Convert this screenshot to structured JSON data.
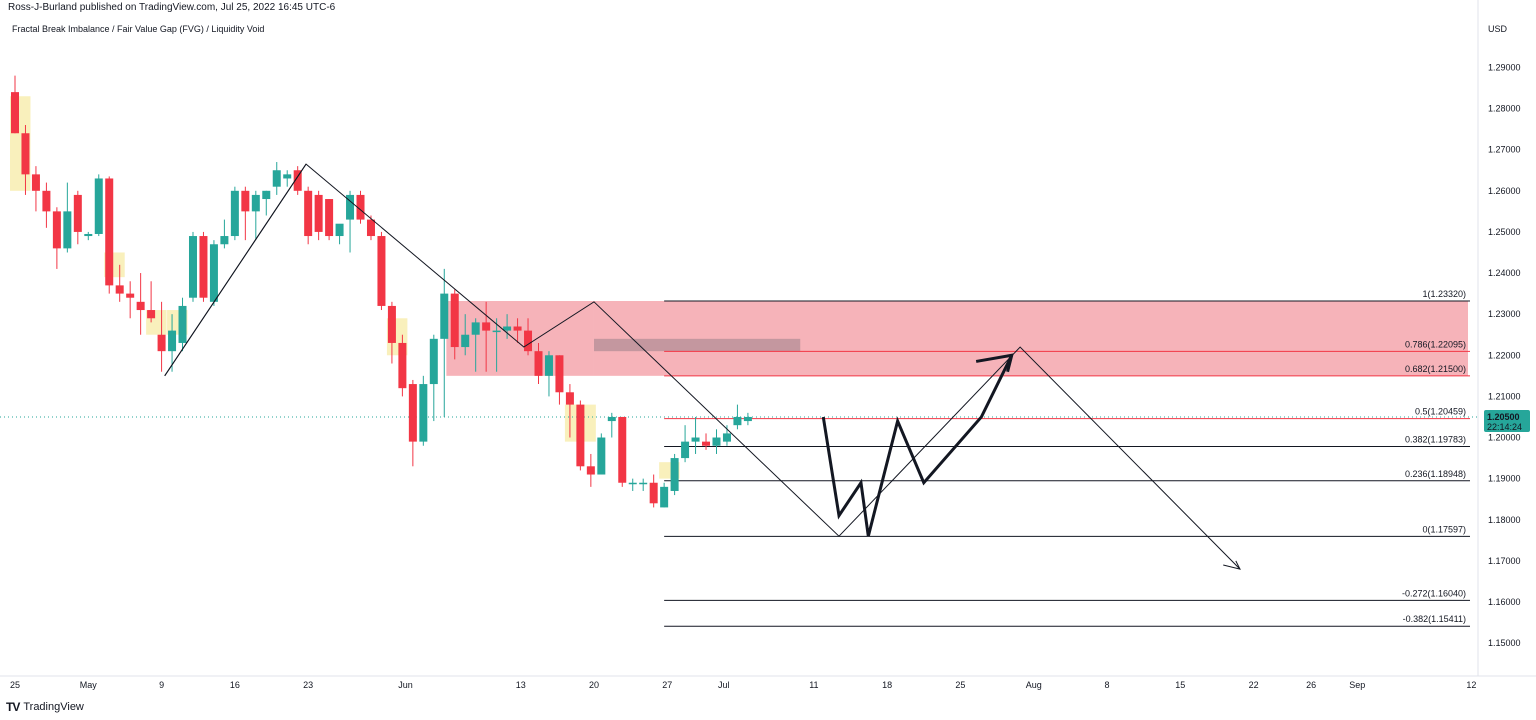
{
  "header": {
    "publisher": "Ross-J-Burland published on TradingView.com, Jul 25, 2022 16:45 UTC-6"
  },
  "footer": {
    "brand": "TradingView",
    "logo": "TV"
  },
  "colors": {
    "up": "#26a69a",
    "down": "#f23645",
    "fvg": "#f7eaa0",
    "zone": "#f4a0a8",
    "zone_dark": "#b89098",
    "price_line": "#f23645",
    "badge": "#26a69a"
  },
  "chart_data": {
    "type": "candlestick",
    "title": "Fractal Break Imbalance / Fair Value Gap (FVG) / Liquidity Void",
    "currency_label": "USD",
    "y_ticks": [
      "1.29000",
      "1.28000",
      "1.27000",
      "1.26000",
      "1.25000",
      "1.24000",
      "1.23000",
      "1.22000",
      "1.21000",
      "1.20000",
      "1.19000",
      "1.18000",
      "1.17000",
      "1.16000",
      "1.15000"
    ],
    "ylim": [
      1.142,
      1.303
    ],
    "x_ticks": [
      "25",
      "May",
      "9",
      "16",
      "23",
      "Jun",
      "13",
      "20",
      "27",
      "Jul",
      "11",
      "18",
      "25",
      "Aug",
      "8",
      "15",
      "22",
      "26",
      "Sep",
      "12"
    ],
    "candles": [
      {
        "o": 1.284,
        "h": 1.288,
        "l": 1.274,
        "c": 1.274
      },
      {
        "o": 1.274,
        "h": 1.276,
        "l": 1.259,
        "c": 1.264
      },
      {
        "o": 1.264,
        "h": 1.266,
        "l": 1.255,
        "c": 1.26
      },
      {
        "o": 1.26,
        "h": 1.262,
        "l": 1.251,
        "c": 1.255
      },
      {
        "o": 1.255,
        "h": 1.256,
        "l": 1.241,
        "c": 1.246
      },
      {
        "o": 1.246,
        "h": 1.262,
        "l": 1.245,
        "c": 1.255
      },
      {
        "o": 1.259,
        "h": 1.26,
        "l": 1.247,
        "c": 1.25
      },
      {
        "o": 1.249,
        "h": 1.25,
        "l": 1.248,
        "c": 1.2495
      },
      {
        "o": 1.2495,
        "h": 1.264,
        "l": 1.249,
        "c": 1.263
      },
      {
        "o": 1.263,
        "h": 1.2635,
        "l": 1.235,
        "c": 1.237
      },
      {
        "o": 1.237,
        "h": 1.242,
        "l": 1.233,
        "c": 1.235
      },
      {
        "o": 1.235,
        "h": 1.238,
        "l": 1.229,
        "c": 1.234
      },
      {
        "o": 1.233,
        "h": 1.24,
        "l": 1.225,
        "c": 1.231
      },
      {
        "o": 1.231,
        "h": 1.238,
        "l": 1.228,
        "c": 1.229
      },
      {
        "o": 1.225,
        "h": 1.233,
        "l": 1.216,
        "c": 1.221
      },
      {
        "o": 1.221,
        "h": 1.23,
        "l": 1.216,
        "c": 1.226
      },
      {
        "o": 1.223,
        "h": 1.234,
        "l": 1.221,
        "c": 1.232
      },
      {
        "o": 1.234,
        "h": 1.25,
        "l": 1.233,
        "c": 1.249
      },
      {
        "o": 1.249,
        "h": 1.25,
        "l": 1.233,
        "c": 1.234
      },
      {
        "o": 1.233,
        "h": 1.248,
        "l": 1.232,
        "c": 1.247
      },
      {
        "o": 1.247,
        "h": 1.253,
        "l": 1.246,
        "c": 1.249
      },
      {
        "o": 1.249,
        "h": 1.261,
        "l": 1.248,
        "c": 1.26
      },
      {
        "o": 1.26,
        "h": 1.261,
        "l": 1.248,
        "c": 1.255
      },
      {
        "o": 1.255,
        "h": 1.26,
        "l": 1.248,
        "c": 1.259
      },
      {
        "o": 1.258,
        "h": 1.26,
        "l": 1.254,
        "c": 1.26
      },
      {
        "o": 1.261,
        "h": 1.267,
        "l": 1.259,
        "c": 1.265
      },
      {
        "o": 1.263,
        "h": 1.265,
        "l": 1.261,
        "c": 1.264
      },
      {
        "o": 1.265,
        "h": 1.266,
        "l": 1.259,
        "c": 1.26
      },
      {
        "o": 1.26,
        "h": 1.261,
        "l": 1.247,
        "c": 1.249
      },
      {
        "o": 1.259,
        "h": 1.26,
        "l": 1.248,
        "c": 1.25
      },
      {
        "o": 1.258,
        "h": 1.258,
        "l": 1.248,
        "c": 1.249
      },
      {
        "o": 1.249,
        "h": 1.251,
        "l": 1.247,
        "c": 1.252
      },
      {
        "o": 1.253,
        "h": 1.26,
        "l": 1.245,
        "c": 1.259
      },
      {
        "o": 1.259,
        "h": 1.26,
        "l": 1.252,
        "c": 1.253
      },
      {
        "o": 1.253,
        "h": 1.254,
        "l": 1.248,
        "c": 1.249
      },
      {
        "o": 1.249,
        "h": 1.25,
        "l": 1.231,
        "c": 1.232
      },
      {
        "o": 1.232,
        "h": 1.233,
        "l": 1.218,
        "c": 1.223
      },
      {
        "o": 1.223,
        "h": 1.225,
        "l": 1.21,
        "c": 1.212
      },
      {
        "o": 1.213,
        "h": 1.214,
        "l": 1.193,
        "c": 1.199
      },
      {
        "o": 1.199,
        "h": 1.215,
        "l": 1.198,
        "c": 1.213
      },
      {
        "o": 1.213,
        "h": 1.225,
        "l": 1.204,
        "c": 1.224
      },
      {
        "o": 1.224,
        "h": 1.241,
        "l": 1.205,
        "c": 1.235
      },
      {
        "o": 1.235,
        "h": 1.236,
        "l": 1.219,
        "c": 1.222
      },
      {
        "o": 1.222,
        "h": 1.23,
        "l": 1.22,
        "c": 1.225
      },
      {
        "o": 1.225,
        "h": 1.229,
        "l": 1.216,
        "c": 1.228
      },
      {
        "o": 1.228,
        "h": 1.233,
        "l": 1.216,
        "c": 1.226
      },
      {
        "o": 1.226,
        "h": 1.229,
        "l": 1.216,
        "c": 1.226
      },
      {
        "o": 1.226,
        "h": 1.23,
        "l": 1.224,
        "c": 1.227
      },
      {
        "o": 1.227,
        "h": 1.229,
        "l": 1.223,
        "c": 1.226
      },
      {
        "o": 1.226,
        "h": 1.229,
        "l": 1.22,
        "c": 1.221
      },
      {
        "o": 1.221,
        "h": 1.223,
        "l": 1.213,
        "c": 1.215
      },
      {
        "o": 1.215,
        "h": 1.221,
        "l": 1.21,
        "c": 1.22
      },
      {
        "o": 1.22,
        "h": 1.22,
        "l": 1.208,
        "c": 1.211
      },
      {
        "o": 1.211,
        "h": 1.213,
        "l": 1.2,
        "c": 1.208
      },
      {
        "o": 1.208,
        "h": 1.209,
        "l": 1.192,
        "c": 1.193
      },
      {
        "o": 1.193,
        "h": 1.196,
        "l": 1.188,
        "c": 1.191
      },
      {
        "o": 1.191,
        "h": 1.201,
        "l": 1.191,
        "c": 1.2
      },
      {
        "o": 1.204,
        "h": 1.206,
        "l": 1.2,
        "c": 1.205
      },
      {
        "o": 1.205,
        "h": 1.205,
        "l": 1.188,
        "c": 1.189
      },
      {
        "o": 1.1888,
        "h": 1.19,
        "l": 1.187,
        "c": 1.189
      },
      {
        "o": 1.1888,
        "h": 1.19,
        "l": 1.187,
        "c": 1.189
      },
      {
        "o": 1.189,
        "h": 1.191,
        "l": 1.183,
        "c": 1.184
      },
      {
        "o": 1.183,
        "h": 1.189,
        "l": 1.183,
        "c": 1.188
      },
      {
        "o": 1.187,
        "h": 1.196,
        "l": 1.186,
        "c": 1.195
      },
      {
        "o": 1.195,
        "h": 1.203,
        "l": 1.194,
        "c": 1.199
      },
      {
        "o": 1.199,
        "h": 1.205,
        "l": 1.196,
        "c": 1.2
      },
      {
        "o": 1.199,
        "h": 1.201,
        "l": 1.197,
        "c": 1.198
      },
      {
        "o": 1.198,
        "h": 1.202,
        "l": 1.196,
        "c": 1.2
      },
      {
        "o": 1.199,
        "h": 1.203,
        "l": 1.198,
        "c": 1.201
      },
      {
        "o": 1.203,
        "h": 1.208,
        "l": 1.202,
        "c": 1.205
      },
      {
        "o": 1.204,
        "h": 1.206,
        "l": 1.203,
        "c": 1.205
      }
    ],
    "fvg_boxes": [
      {
        "i0": 0,
        "i1": 1,
        "y0": 1.26,
        "y1": 1.283
      },
      {
        "i0": 9,
        "i1": 10,
        "y0": 1.239,
        "y1": 1.245
      },
      {
        "i0": 13,
        "i1": 14,
        "y0": 1.225,
        "y1": 1.231
      },
      {
        "i0": 15,
        "i1": 16,
        "y0": 1.225,
        "y1": 1.231
      },
      {
        "i0": 36,
        "i1": 37,
        "y0": 1.22,
        "y1": 1.229
      },
      {
        "i0": 53,
        "i1": 55,
        "y0": 1.199,
        "y1": 1.208
      },
      {
        "i0": 62,
        "i1": 63,
        "y0": 1.19,
        "y1": 1.194
      }
    ],
    "fib_levels": [
      {
        "label": "1(1.23320)",
        "value": 1.2332
      },
      {
        "label": "0.786(1.22095)",
        "value": 1.22095,
        "color": "#f23645"
      },
      {
        "label": "0.682(1.21500)",
        "value": 1.215,
        "color": "#f23645"
      },
      {
        "label": "0.5(1.20459)",
        "value": 1.20459,
        "color": "#f23645"
      },
      {
        "label": "0.382(1.19783)",
        "value": 1.19783
      },
      {
        "label": "0.236(1.18948)",
        "value": 1.18948
      },
      {
        "label": "0(1.17597)",
        "value": 1.17597
      },
      {
        "label": "-0.272(1.16040)",
        "value": 1.1604
      },
      {
        "label": "-0.382(1.15411)",
        "value": 1.15411
      }
    ],
    "last_price": {
      "value": 1.205,
      "label": "1.20500",
      "timer": "22:14:24"
    }
  }
}
